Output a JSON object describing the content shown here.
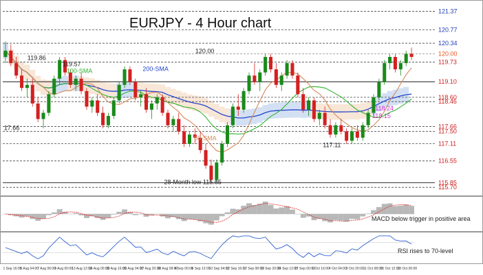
{
  "chart_data": {
    "type": "line",
    "title": "EURJPY - 4 Hour chart",
    "ylim": [
      115.55,
      121.6
    ],
    "price_levels": [
      {
        "label": "121.37",
        "value": 121.37,
        "color": "#1f3fb4",
        "style": "dashed"
      },
      {
        "label": "120.77",
        "value": 120.77,
        "color": "#1f3fb4",
        "style": "dashed"
      },
      {
        "label": "120.34",
        "value": 120.34,
        "color": "#1f3fb4",
        "style": "dashed"
      },
      {
        "label": "120.00",
        "value": 120.0,
        "color": "#e8551c",
        "style": "current"
      },
      {
        "label": "119.73",
        "value": 119.73,
        "color": "#cc1f1f",
        "style": "dashed"
      },
      {
        "label": "119.10",
        "value": 119.1,
        "color": "#cc1f1f",
        "style": "solid"
      },
      {
        "label": "118.60",
        "value": 118.6,
        "color": "#cc1f1f",
        "style": "dashed"
      },
      {
        "label": "118.46",
        "value": 118.46,
        "color": "#cc1f1f",
        "style": "dashed"
      },
      {
        "label": "117.66",
        "value": 117.66,
        "color": "#cc1f1f",
        "style": "dashed"
      },
      {
        "label": "117.50",
        "value": 117.5,
        "color": "#cc1f1f",
        "style": "dashed"
      },
      {
        "label": "117.11",
        "value": 117.11,
        "color": "#cc1f1f",
        "style": "dashed"
      },
      {
        "label": "116.55",
        "value": 116.55,
        "color": "#cc1f1f",
        "style": "dashed"
      },
      {
        "label": "115.85",
        "value": 115.85,
        "color": "#cc1f1f",
        "style": "solid"
      },
      {
        "label": "115.70",
        "value": 115.7,
        "color": "#cc1f1f",
        "style": "dashed"
      }
    ],
    "annotations": [
      {
        "text": "119.86",
        "x": 0.06,
        "y": 119.8,
        "color": "#222222"
      },
      {
        "text": "119.57",
        "x": 0.145,
        "y": 119.6,
        "color": "#222222"
      },
      {
        "text": "17.66",
        "x": 0.003,
        "y": 117.55,
        "color": "#222222"
      },
      {
        "text": "120.00",
        "x": 0.468,
        "y": 120.02,
        "color": "#222222"
      },
      {
        "text": "117.11",
        "x": 0.778,
        "y": 117.0,
        "color": "#222222"
      },
      {
        "text": "28-Month low 115.85",
        "x": 0.392,
        "y": 115.8,
        "color": "#222222"
      },
      {
        "text": "100-SMA",
        "x": 0.155,
        "y": 119.38,
        "color": "#2fb22f"
      },
      {
        "text": "200-SMA",
        "x": 0.34,
        "y": 119.45,
        "color": "#2244cc"
      },
      {
        "text": "50-SMA",
        "x": 0.465,
        "y": 117.22,
        "color": "#d48a5a"
      },
      {
        "text": "118.24",
        "x": 0.905,
        "y": 118.18,
        "color": "#d02fd0"
      },
      {
        "text": "118.15",
        "x": 0.898,
        "y": 117.93,
        "color": "#d02fd0"
      }
    ],
    "candles": [
      [
        119.9,
        120.4,
        119.7,
        120.1
      ],
      [
        120.1,
        120.3,
        119.6,
        119.7
      ],
      [
        119.7,
        119.9,
        119.2,
        119.3
      ],
      [
        119.3,
        119.5,
        118.8,
        118.9
      ],
      [
        118.9,
        119.2,
        118.6,
        119.0
      ],
      [
        119.0,
        119.2,
        118.3,
        118.4
      ],
      [
        118.4,
        118.6,
        117.8,
        117.9
      ],
      [
        117.9,
        118.2,
        117.6,
        118.1
      ],
      [
        118.1,
        118.8,
        118.0,
        118.7
      ],
      [
        118.7,
        119.3,
        118.6,
        119.2
      ],
      [
        119.2,
        119.9,
        119.0,
        119.8
      ],
      [
        119.8,
        119.9,
        119.3,
        119.4
      ],
      [
        119.4,
        119.5,
        118.9,
        119.0
      ],
      [
        119.0,
        119.3,
        118.8,
        119.2
      ],
      [
        119.2,
        119.4,
        118.7,
        118.8
      ],
      [
        118.8,
        118.9,
        118.2,
        118.3
      ],
      [
        118.3,
        118.6,
        118.1,
        118.5
      ],
      [
        118.5,
        118.7,
        118.0,
        118.1
      ],
      [
        118.1,
        118.3,
        117.6,
        117.7
      ],
      [
        117.7,
        118.1,
        117.6,
        118.0
      ],
      [
        118.0,
        118.6,
        117.9,
        118.5
      ],
      [
        118.5,
        119.1,
        118.4,
        119.0
      ],
      [
        119.0,
        119.6,
        118.9,
        119.5
      ],
      [
        119.5,
        119.6,
        119.0,
        119.1
      ],
      [
        119.1,
        119.2,
        118.5,
        118.6
      ],
      [
        118.6,
        118.8,
        118.3,
        118.7
      ],
      [
        118.7,
        118.9,
        118.1,
        118.2
      ],
      [
        118.2,
        118.5,
        117.9,
        118.4
      ],
      [
        118.4,
        118.7,
        118.2,
        118.6
      ],
      [
        118.6,
        118.7,
        118.0,
        118.1
      ],
      [
        118.1,
        118.2,
        117.6,
        117.7
      ],
      [
        117.7,
        118.0,
        117.5,
        117.9
      ],
      [
        117.9,
        118.1,
        117.4,
        117.5
      ],
      [
        117.5,
        117.7,
        117.0,
        117.1
      ],
      [
        117.1,
        117.5,
        117.0,
        117.4
      ],
      [
        117.4,
        117.6,
        117.1,
        117.3
      ],
      [
        117.3,
        117.5,
        116.8,
        116.9
      ],
      [
        116.9,
        117.1,
        116.3,
        116.4
      ],
      [
        116.4,
        116.6,
        115.85,
        115.95
      ],
      [
        115.95,
        116.6,
        115.9,
        116.5
      ],
      [
        116.5,
        117.2,
        116.4,
        117.1
      ],
      [
        117.1,
        117.8,
        117.0,
        117.7
      ],
      [
        117.7,
        118.4,
        117.6,
        118.3
      ],
      [
        118.3,
        118.7,
        118.0,
        118.2
      ],
      [
        118.2,
        118.9,
        118.1,
        118.8
      ],
      [
        118.8,
        119.4,
        118.7,
        119.3
      ],
      [
        119.3,
        119.7,
        119.0,
        119.1
      ],
      [
        119.1,
        119.5,
        118.8,
        119.4
      ],
      [
        119.4,
        120.0,
        119.3,
        119.9
      ],
      [
        119.9,
        120.0,
        119.4,
        119.5
      ],
      [
        119.5,
        119.7,
        118.9,
        119.0
      ],
      [
        119.0,
        119.4,
        118.8,
        119.3
      ],
      [
        119.3,
        119.8,
        119.2,
        119.7
      ],
      [
        119.7,
        119.8,
        119.2,
        119.3
      ],
      [
        119.3,
        119.4,
        118.6,
        118.7
      ],
      [
        118.7,
        118.9,
        118.1,
        118.2
      ],
      [
        118.2,
        118.6,
        118.0,
        118.5
      ],
      [
        118.5,
        118.6,
        117.8,
        117.9
      ],
      [
        117.9,
        118.2,
        117.7,
        118.1
      ],
      [
        118.1,
        118.3,
        117.6,
        117.7
      ],
      [
        117.7,
        117.9,
        117.3,
        117.4
      ],
      [
        117.4,
        117.8,
        117.3,
        117.7
      ],
      [
        117.7,
        117.9,
        117.4,
        117.5
      ],
      [
        117.5,
        117.6,
        117.1,
        117.2
      ],
      [
        117.2,
        117.6,
        117.1,
        117.5
      ],
      [
        117.5,
        117.7,
        117.2,
        117.3
      ],
      [
        117.3,
        117.8,
        117.2,
        117.7
      ],
      [
        117.7,
        118.2,
        117.6,
        118.1
      ],
      [
        118.1,
        118.7,
        118.0,
        118.6
      ],
      [
        118.6,
        119.2,
        118.5,
        119.1
      ],
      [
        119.1,
        119.8,
        119.0,
        119.7
      ],
      [
        119.7,
        120.0,
        119.5,
        119.9
      ],
      [
        119.9,
        120.0,
        119.4,
        119.5
      ],
      [
        119.5,
        119.8,
        119.3,
        119.7
      ],
      [
        119.7,
        120.1,
        119.6,
        120.0
      ],
      [
        120.0,
        120.2,
        119.8,
        119.9
      ]
    ]
  },
  "indicators": {
    "macd_note": "MACD below trigger in positive area",
    "rsi_note": "RSI rises to 70-level"
  },
  "x_axis_labels": [
    "1 Sep 16:00",
    "5 Aug 04:00",
    "7 Aug 06:00",
    "9 Aug 00:00",
    "13 Aug 12:00",
    "16 Aug 00:00",
    "20 Aug 16:00",
    "23 Aug 04:00",
    "27 Aug 20:00",
    "30 Aug 08:00",
    "4 Sep 00:00",
    "6 Sep 12:00",
    "10 Sep 04:00",
    "12 Sep 16:00",
    "17 Sep 08:00",
    "19 Sep 20:00",
    "24 Sep 12:00",
    "27 Sep 00:00",
    "1 Oct 16:00",
    "4 Oct 04:00",
    "8 Oct 20:00",
    "11 Oct 08:00",
    "15 Oct 12:00",
    "18 Oct 00:00"
  ],
  "colors": {
    "bull": "#1a8a1a",
    "bear": "#d42020",
    "sma50": "#d48a5a",
    "sma100": "#2fb22f",
    "sma200": "#2244cc",
    "cloud_bull": "#9dbbe6",
    "cloud_bear": "#f0c7a6"
  }
}
